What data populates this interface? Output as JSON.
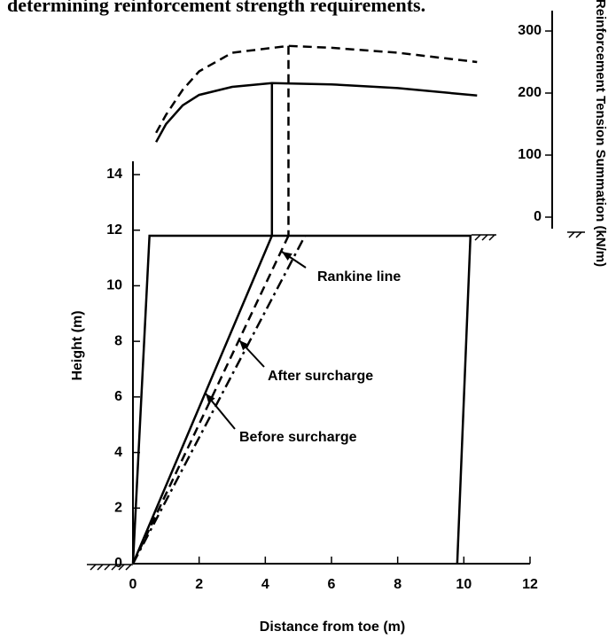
{
  "chart_data": {
    "type": "line",
    "title": "determining reinforcement strength requirements.",
    "xlabel": "Distance from toe (m)",
    "ylabel": "Height (m)",
    "y2label": "Reinforcement Tension Summation (kN/m)",
    "xlim": [
      0,
      12
    ],
    "ylim": [
      0,
      14
    ],
    "xticks": [
      0,
      2,
      4,
      6,
      8,
      10,
      12
    ],
    "yticks": [
      0,
      2,
      4,
      6,
      8,
      10,
      12,
      14
    ],
    "y2lim": [
      0,
      300
    ],
    "y2ticks": [
      0,
      100,
      200,
      300
    ],
    "color": "#000000",
    "series": [
      {
        "x": [
          0,
          0.5,
          10.2,
          9.8
        ],
        "values": [
          0,
          11.8,
          11.8,
          0
        ],
        "style": "solid"
      },
      {
        "name": "Before surcharge",
        "x": [
          0,
          4.2
        ],
        "values": [
          0,
          11.8
        ],
        "style": "solid"
      },
      {
        "name": "After surcharge",
        "x": [
          0,
          4.7
        ],
        "values": [
          0,
          11.8
        ],
        "style": "dash"
      },
      {
        "name": "Rankine line",
        "x": [
          0,
          5.2
        ],
        "values": [
          0,
          11.8
        ],
        "style": "dashdot"
      },
      {
        "axis": "y2",
        "x": [
          0.7,
          1,
          1.5,
          2,
          3,
          4.2,
          6,
          8,
          10.4
        ],
        "values": [
          121,
          150,
          180,
          197,
          210,
          216,
          214,
          208,
          196
        ],
        "style": "solid"
      },
      {
        "axis": "y2",
        "x": [
          0.7,
          1,
          1.5,
          2,
          3,
          4.7,
          6,
          8,
          10.4
        ],
        "values": [
          136,
          165,
          205,
          235,
          265,
          276,
          273,
          265,
          250
        ],
        "style": "dash"
      }
    ]
  }
}
